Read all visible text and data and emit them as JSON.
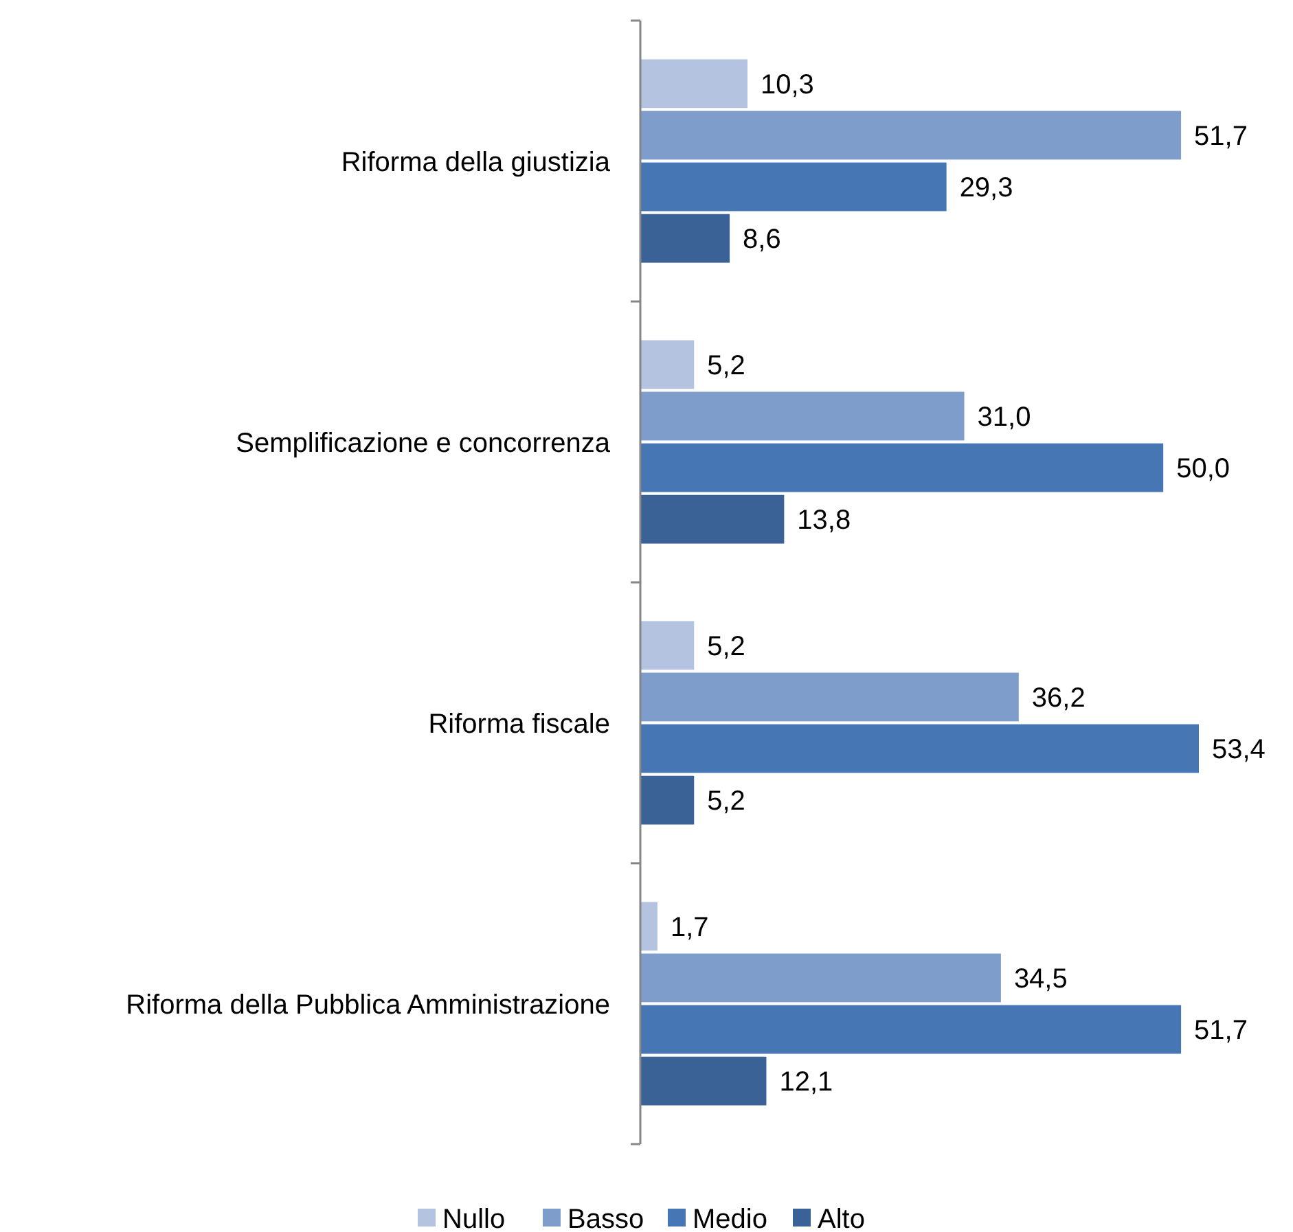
{
  "chart_data": {
    "type": "bar",
    "orientation": "horizontal",
    "categories": [
      "Riforma della giustizia",
      "Semplificazione e concorrenza",
      "Riforma fiscale",
      "Riforma della Pubblica Amministrazione"
    ],
    "series": [
      {
        "name": "Nullo",
        "color": "#b4c3df",
        "values": [
          10.3,
          5.2,
          5.2,
          1.7
        ],
        "value_labels": [
          "10,3",
          "5,2",
          "5,2",
          "1,7"
        ]
      },
      {
        "name": "Basso",
        "color": "#7f9dca",
        "values": [
          51.7,
          31.0,
          36.2,
          34.5
        ],
        "value_labels": [
          "51,7",
          "31,0",
          "36,2",
          "34,5"
        ]
      },
      {
        "name": "Medio",
        "color": "#4677b4",
        "values": [
          29.3,
          50.0,
          53.4,
          51.7
        ],
        "value_labels": [
          "29,3",
          "50,0",
          "53,4",
          "51,7"
        ]
      },
      {
        "name": "Alto",
        "color": "#3a6296",
        "values": [
          8.6,
          13.8,
          5.2,
          12.1
        ],
        "value_labels": [
          "8,6",
          "13,8",
          "5,2",
          "12,1"
        ]
      }
    ],
    "legend": "bottom",
    "grid": false
  }
}
